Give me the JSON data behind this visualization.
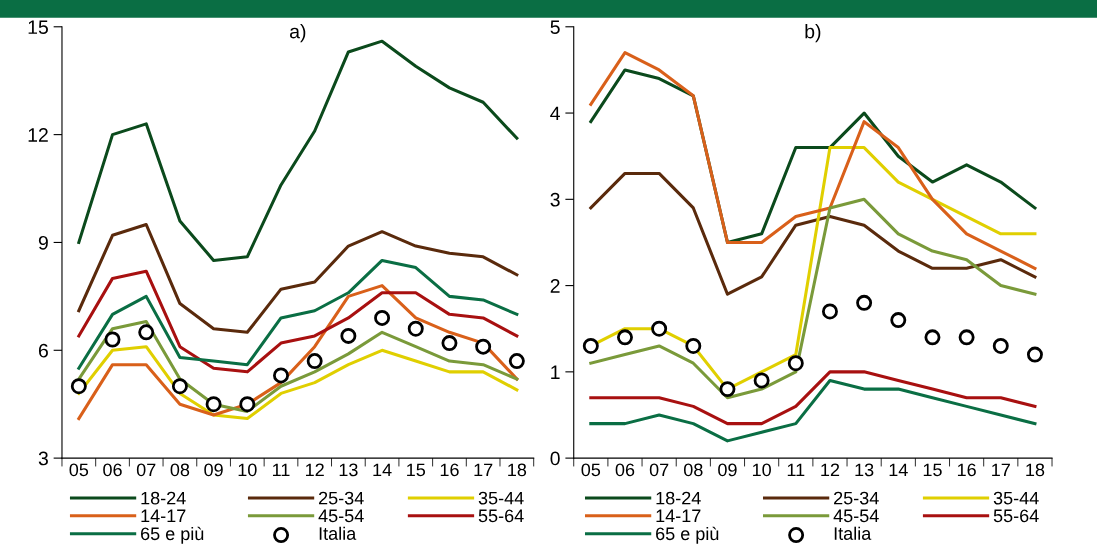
{
  "chart_data": [
    {
      "type": "line",
      "title": "a)",
      "categories": [
        "05",
        "06",
        "07",
        "08",
        "09",
        "10",
        "11",
        "12",
        "13",
        "14",
        "15",
        "16",
        "17",
        "18"
      ],
      "ylim": [
        3,
        15
      ],
      "yticks": [
        3,
        6,
        9,
        12,
        15
      ],
      "grid": false,
      "legend": "bottom",
      "marker": "none",
      "series": [
        {
          "name": "18-24",
          "color": "#0b4a1c",
          "values": [
            9.0,
            12.0,
            12.3,
            9.6,
            8.5,
            8.6,
            10.6,
            12.1,
            14.3,
            14.6,
            13.9,
            13.3,
            12.9,
            11.9
          ]
        },
        {
          "name": "25-34",
          "color": "#5a2a0c",
          "values": [
            7.1,
            9.2,
            9.5,
            7.3,
            6.6,
            6.5,
            7.7,
            7.9,
            8.9,
            9.3,
            8.9,
            8.7,
            8.6,
            8.1
          ]
        },
        {
          "name": "35-44",
          "color": "#e0cf00",
          "values": [
            4.8,
            6.0,
            6.1,
            4.8,
            4.2,
            4.1,
            4.8,
            5.1,
            5.6,
            6.0,
            5.7,
            5.4,
            5.4,
            4.9
          ]
        },
        {
          "name": "14-17",
          "color": "#d9601a",
          "values": [
            4.1,
            5.6,
            5.6,
            4.5,
            4.2,
            4.5,
            5.1,
            6.1,
            7.5,
            7.8,
            6.9,
            6.5,
            6.2,
            5.2
          ]
        },
        {
          "name": "45-54",
          "color": "#7a9a3a",
          "values": [
            5.2,
            6.6,
            6.8,
            5.2,
            4.5,
            4.3,
            5.0,
            5.4,
            5.9,
            6.5,
            6.1,
            5.7,
            5.6,
            5.2
          ]
        },
        {
          "name": "55-64",
          "color": "#a81010",
          "values": [
            6.4,
            8.0,
            8.2,
            6.1,
            5.5,
            5.4,
            6.2,
            6.4,
            6.9,
            7.6,
            7.6,
            7.0,
            6.9,
            6.4
          ]
        },
        {
          "name": "65 e più",
          "color": "#0a6e44",
          "values": [
            5.5,
            7.0,
            7.5,
            5.8,
            5.7,
            5.6,
            6.9,
            7.1,
            7.6,
            8.5,
            8.3,
            7.5,
            7.4,
            7.0
          ]
        },
        {
          "name": "Italia",
          "type": "scatter",
          "marker": "circle",
          "color": "#000000",
          "values": [
            5.0,
            6.3,
            6.5,
            5.0,
            4.5,
            4.5,
            5.3,
            5.7,
            6.4,
            6.9,
            6.6,
            6.2,
            6.1,
            5.7
          ]
        }
      ]
    },
    {
      "type": "line",
      "title": "b)",
      "categories": [
        "05",
        "06",
        "07",
        "08",
        "09",
        "10",
        "11",
        "12",
        "13",
        "14",
        "15",
        "16",
        "17",
        "18"
      ],
      "ylim": [
        0,
        5
      ],
      "yticks": [
        0,
        1,
        2,
        3,
        4,
        5
      ],
      "grid": false,
      "legend": "bottom",
      "marker": "none",
      "series": [
        {
          "name": "18-24",
          "color": "#0b4a1c",
          "values": [
            3.9,
            4.5,
            4.4,
            4.2,
            2.5,
            2.6,
            3.6,
            3.6,
            4.0,
            3.5,
            3.2,
            3.4,
            3.2,
            2.9
          ]
        },
        {
          "name": "25-34",
          "color": "#5a2a0c",
          "values": [
            2.9,
            3.3,
            3.3,
            2.9,
            1.9,
            2.1,
            2.7,
            2.8,
            2.7,
            2.4,
            2.2,
            2.2,
            2.3,
            2.1
          ]
        },
        {
          "name": "35-44",
          "color": "#e0cf00",
          "values": [
            1.3,
            1.5,
            1.5,
            1.3,
            0.8,
            1.0,
            1.2,
            3.6,
            3.6,
            3.2,
            3.0,
            2.8,
            2.6,
            2.6
          ]
        },
        {
          "name": "14-17",
          "color": "#d9601a",
          "values": [
            4.1,
            4.7,
            4.5,
            4.2,
            2.5,
            2.5,
            2.8,
            2.9,
            3.9,
            3.6,
            3.0,
            2.6,
            2.4,
            2.2
          ]
        },
        {
          "name": "45-54",
          "color": "#7a9a3a",
          "values": [
            1.1,
            1.2,
            1.3,
            1.1,
            0.7,
            0.8,
            1.0,
            2.9,
            3.0,
            2.6,
            2.4,
            2.3,
            2.0,
            1.9
          ]
        },
        {
          "name": "55-64",
          "color": "#a81010",
          "values": [
            0.7,
            0.7,
            0.7,
            0.6,
            0.4,
            0.4,
            0.6,
            1.0,
            1.0,
            0.9,
            0.8,
            0.7,
            0.7,
            0.6
          ]
        },
        {
          "name": "65 e più",
          "color": "#0a6e44",
          "values": [
            0.4,
            0.4,
            0.5,
            0.4,
            0.2,
            0.3,
            0.4,
            0.9,
            0.8,
            0.8,
            0.7,
            0.6,
            0.5,
            0.4
          ]
        },
        {
          "name": "Italia",
          "type": "scatter",
          "marker": "circle",
          "color": "#000000",
          "values": [
            1.3,
            1.4,
            1.5,
            1.3,
            0.8,
            0.9,
            1.1,
            1.7,
            1.8,
            1.6,
            1.4,
            1.4,
            1.3,
            1.2
          ]
        }
      ]
    }
  ]
}
